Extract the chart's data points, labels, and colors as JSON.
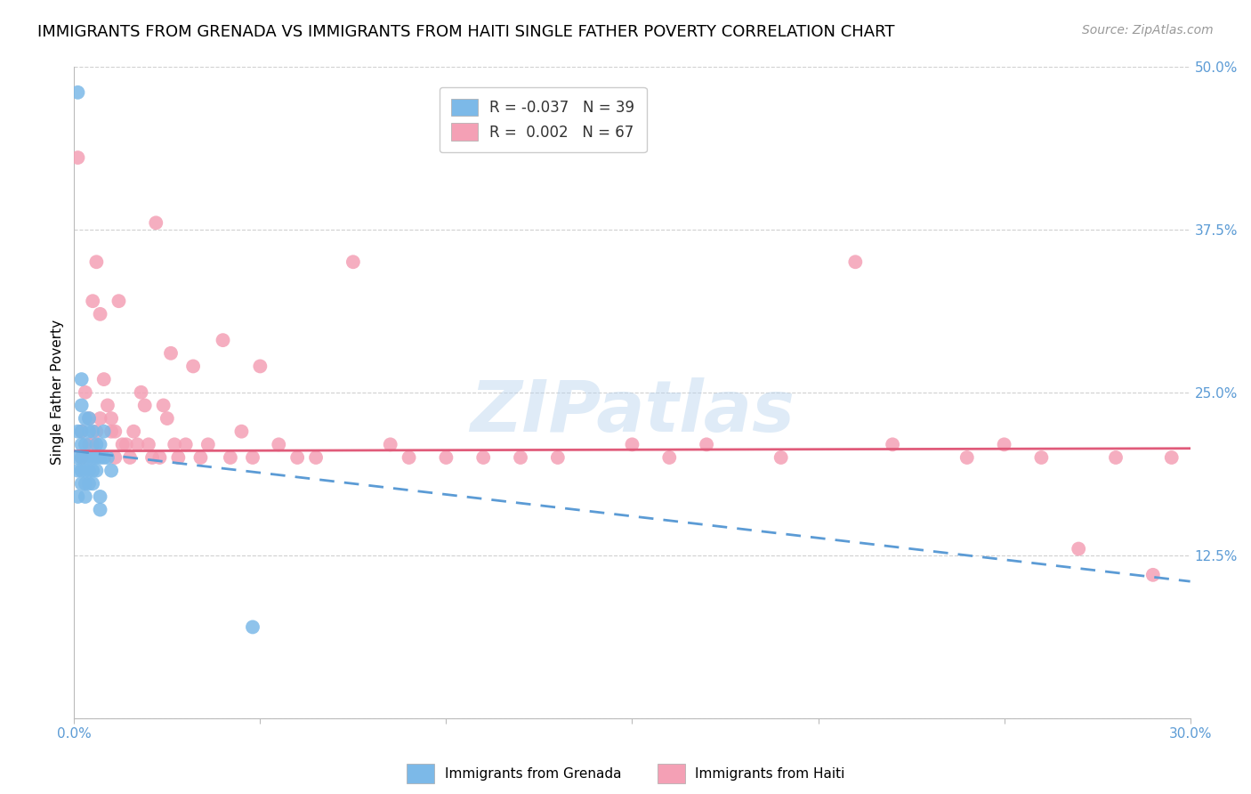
{
  "title": "IMMIGRANTS FROM GRENADA VS IMMIGRANTS FROM HAITI SINGLE FATHER POVERTY CORRELATION CHART",
  "source": "Source: ZipAtlas.com",
  "ylabel": "Single Father Poverty",
  "xlim": [
    0.0,
    0.3
  ],
  "ylim": [
    0.0,
    0.5
  ],
  "yticks": [
    0.0,
    0.125,
    0.25,
    0.375,
    0.5
  ],
  "ytick_labels": [
    "",
    "12.5%",
    "25.0%",
    "37.5%",
    "50.0%"
  ],
  "xticks": [
    0.0,
    0.05,
    0.1,
    0.15,
    0.2,
    0.25,
    0.3
  ],
  "xtick_labels": [
    "0.0%",
    "",
    "",
    "",
    "",
    "",
    "30.0%"
  ],
  "grenada_R": -0.037,
  "grenada_N": 39,
  "haiti_R": 0.002,
  "haiti_N": 67,
  "grenada_color": "#7cb9e8",
  "haiti_color": "#f4a0b5",
  "grenada_line_color": "#5b9bd5",
  "haiti_line_color": "#e05b7a",
  "background_color": "#ffffff",
  "grid_color": "#d0d0d0",
  "title_fontsize": 13,
  "axis_label_fontsize": 11,
  "tick_fontsize": 11,
  "legend_fontsize": 12,
  "watermark": "ZIPatlas",
  "grenada_x": [
    0.001,
    0.001,
    0.001,
    0.001,
    0.001,
    0.002,
    0.002,
    0.002,
    0.002,
    0.002,
    0.002,
    0.002,
    0.003,
    0.003,
    0.003,
    0.003,
    0.003,
    0.003,
    0.004,
    0.004,
    0.004,
    0.004,
    0.004,
    0.005,
    0.005,
    0.005,
    0.005,
    0.006,
    0.006,
    0.006,
    0.007,
    0.007,
    0.007,
    0.007,
    0.008,
    0.008,
    0.009,
    0.01,
    0.048
  ],
  "grenada_y": [
    0.48,
    0.22,
    0.2,
    0.19,
    0.17,
    0.26,
    0.24,
    0.22,
    0.21,
    0.2,
    0.19,
    0.18,
    0.23,
    0.21,
    0.2,
    0.19,
    0.18,
    0.17,
    0.23,
    0.22,
    0.2,
    0.19,
    0.18,
    0.22,
    0.2,
    0.19,
    0.18,
    0.21,
    0.2,
    0.19,
    0.21,
    0.2,
    0.17,
    0.16,
    0.22,
    0.2,
    0.2,
    0.19,
    0.07
  ],
  "haiti_x": [
    0.001,
    0.002,
    0.002,
    0.003,
    0.004,
    0.004,
    0.005,
    0.005,
    0.006,
    0.006,
    0.007,
    0.007,
    0.008,
    0.009,
    0.01,
    0.01,
    0.011,
    0.011,
    0.012,
    0.013,
    0.014,
    0.015,
    0.016,
    0.017,
    0.018,
    0.019,
    0.02,
    0.021,
    0.022,
    0.023,
    0.024,
    0.025,
    0.026,
    0.027,
    0.028,
    0.03,
    0.032,
    0.034,
    0.036,
    0.04,
    0.042,
    0.045,
    0.048,
    0.05,
    0.055,
    0.06,
    0.065,
    0.075,
    0.085,
    0.09,
    0.1,
    0.11,
    0.12,
    0.13,
    0.15,
    0.16,
    0.17,
    0.19,
    0.21,
    0.22,
    0.24,
    0.25,
    0.26,
    0.27,
    0.28,
    0.29,
    0.295
  ],
  "haiti_y": [
    0.43,
    0.22,
    0.2,
    0.25,
    0.23,
    0.21,
    0.32,
    0.21,
    0.35,
    0.22,
    0.31,
    0.23,
    0.26,
    0.24,
    0.23,
    0.22,
    0.22,
    0.2,
    0.32,
    0.21,
    0.21,
    0.2,
    0.22,
    0.21,
    0.25,
    0.24,
    0.21,
    0.2,
    0.38,
    0.2,
    0.24,
    0.23,
    0.28,
    0.21,
    0.2,
    0.21,
    0.27,
    0.2,
    0.21,
    0.29,
    0.2,
    0.22,
    0.2,
    0.27,
    0.21,
    0.2,
    0.2,
    0.35,
    0.21,
    0.2,
    0.2,
    0.2,
    0.2,
    0.2,
    0.21,
    0.2,
    0.21,
    0.2,
    0.35,
    0.21,
    0.2,
    0.21,
    0.2,
    0.13,
    0.2,
    0.11,
    0.2
  ],
  "grenada_trend_x": [
    0.0,
    0.3
  ],
  "grenada_trend_y": [
    0.205,
    0.105
  ],
  "haiti_trend_x": [
    0.0,
    0.3
  ],
  "haiti_trend_y": [
    0.205,
    0.207
  ]
}
